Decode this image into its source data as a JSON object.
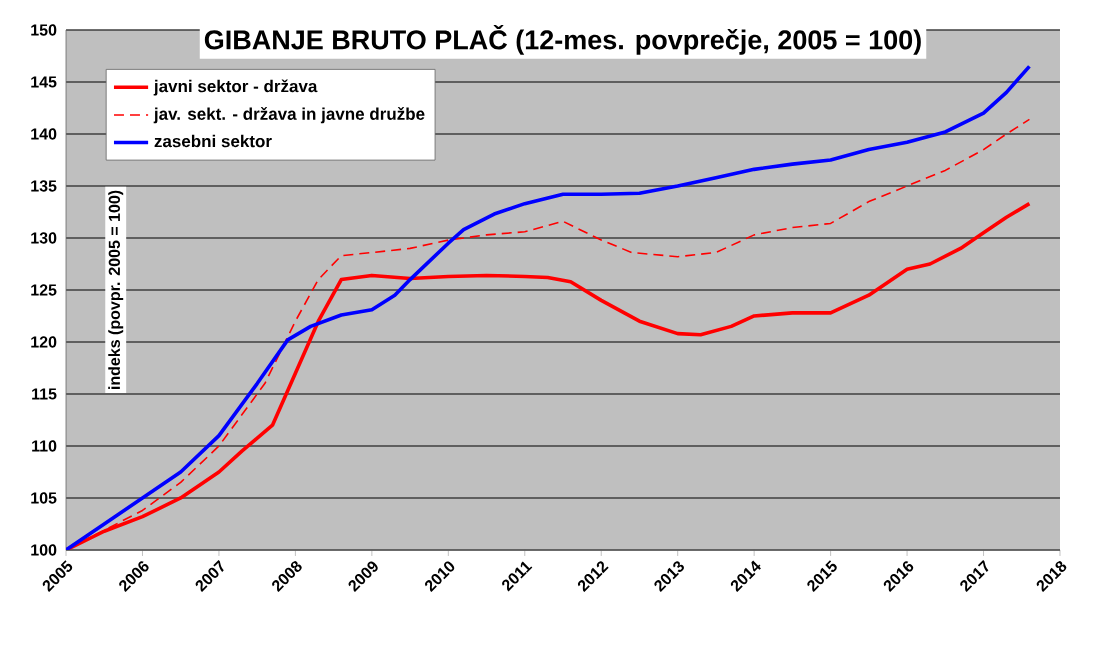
{
  "chart_data": {
    "type": "line",
    "title": "GIBANJE BRUTO PLAČ (12-mes. povprečje, 2005 = 100)",
    "ylabel": "indeks (povpr. 2005 = 100)",
    "xlim": [
      2005,
      2018
    ],
    "xticks": [
      2005,
      2006,
      2007,
      2008,
      2009,
      2010,
      2011,
      2012,
      2013,
      2014,
      2015,
      2016,
      2017,
      2018
    ],
    "ylim": [
      100,
      150
    ],
    "yticks": [
      100,
      105,
      110,
      115,
      120,
      125,
      130,
      135,
      140,
      145,
      150
    ],
    "grid": "y",
    "legend": "top left",
    "series": [
      {
        "name": "javni sektor - država",
        "color": "#ff0000",
        "line_style": "solid",
        "x": [
          2005,
          2005.5,
          2006,
          2006.5,
          2007,
          2007.3,
          2007.7,
          2008,
          2008.3,
          2008.6,
          2009,
          2009.5,
          2010,
          2010.5,
          2011,
          2011.3,
          2011.6,
          2012,
          2012.5,
          2013,
          2013.3,
          2013.7,
          2014,
          2014.5,
          2015,
          2015.5,
          2016,
          2016.3,
          2016.7,
          2017,
          2017.3,
          2017.6
        ],
        "values": [
          100,
          101.8,
          103.2,
          105,
          107.5,
          109.5,
          112,
          117,
          122,
          126,
          126.4,
          126.1,
          126.3,
          126.4,
          126.3,
          126.2,
          125.8,
          124,
          122,
          120.8,
          120.7,
          121.5,
          122.5,
          122.8,
          122.8,
          124.5,
          127,
          127.5,
          129,
          130.5,
          132,
          133.3
        ]
      },
      {
        "name": "jav. sekt. - država in javne družbe",
        "color": "#ff0000",
        "line_style": "dashed",
        "x": [
          2005,
          2006,
          2006.5,
          2007,
          2007.6,
          2008,
          2008.3,
          2008.6,
          2009,
          2009.5,
          2010,
          2010.5,
          2011,
          2011.5,
          2012,
          2012.4,
          2013,
          2013.5,
          2014,
          2014.5,
          2015,
          2015.5,
          2016,
          2016.5,
          2017,
          2017.3,
          2017.6
        ],
        "values": [
          100,
          103.8,
          106.5,
          110,
          116,
          122,
          126,
          128.3,
          128.6,
          129,
          129.8,
          130.3,
          130.6,
          131.6,
          129.8,
          128.6,
          128.2,
          128.6,
          130.3,
          131,
          131.4,
          133.5,
          135,
          136.5,
          138.5,
          140,
          141.4
        ]
      },
      {
        "name": "zasebni sektor",
        "color": "#0000ff",
        "line_style": "solid",
        "x": [
          2005,
          2005.5,
          2006,
          2006.5,
          2007,
          2007.5,
          2007.9,
          2008.2,
          2008.6,
          2009,
          2009.3,
          2009.5,
          2010,
          2010.2,
          2010.6,
          2011,
          2011.5,
          2012,
          2012.5,
          2013,
          2013.5,
          2014,
          2014.5,
          2015,
          2015.5,
          2016,
          2016.5,
          2017,
          2017.3,
          2017.6
        ],
        "values": [
          100,
          102.5,
          105,
          107.5,
          111,
          116,
          120.2,
          121.5,
          122.6,
          123.1,
          124.5,
          126,
          129.5,
          130.8,
          132.3,
          133.3,
          134.2,
          134.2,
          134.3,
          135,
          135.8,
          136.6,
          137.1,
          137.5,
          138.5,
          139.2,
          140.2,
          142,
          144,
          146.5
        ]
      }
    ]
  }
}
